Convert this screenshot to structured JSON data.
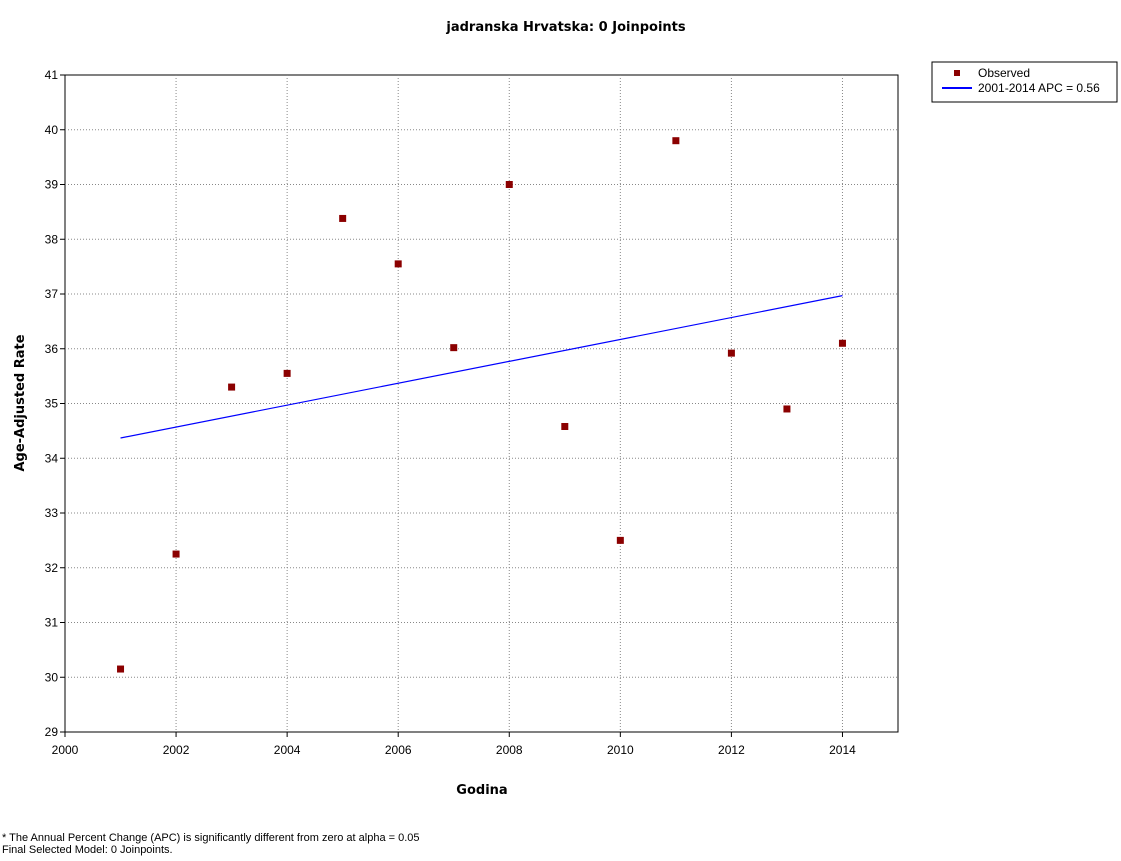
{
  "chart_data": {
    "type": "scatter",
    "title": "jadranska Hrvatska: 0 Joinpoints",
    "xlabel": "Godina",
    "ylabel": "Age-Adjusted Rate",
    "xlim": [
      2000,
      2015
    ],
    "ylim": [
      29,
      41
    ],
    "x_ticks": [
      2000,
      2002,
      2004,
      2006,
      2008,
      2010,
      2012,
      2014
    ],
    "y_ticks": [
      29,
      30,
      31,
      32,
      33,
      34,
      35,
      36,
      37,
      38,
      39,
      40,
      41
    ],
    "grid": true,
    "legend_position": "top-right outside",
    "series": [
      {
        "name": "Observed",
        "kind": "scatter",
        "color": "#8b0000",
        "x": [
          2001,
          2002,
          2003,
          2004,
          2005,
          2006,
          2007,
          2008,
          2009,
          2010,
          2011,
          2012,
          2013,
          2014
        ],
        "y": [
          30.15,
          32.25,
          35.3,
          35.55,
          38.38,
          37.55,
          36.02,
          39.0,
          34.58,
          32.5,
          39.8,
          35.92,
          34.9,
          36.1
        ]
      },
      {
        "name": "2001-2014 APC  = 0.56",
        "kind": "line",
        "color": "#0000ff",
        "x": [
          2001,
          2014
        ],
        "y": [
          34.37,
          36.97
        ]
      }
    ]
  },
  "footnotes": {
    "line1": "* The Annual Percent Change (APC) is significantly different from zero at alpha = 0.05",
    "line2": "Final Selected Model: 0 Joinpoints."
  }
}
